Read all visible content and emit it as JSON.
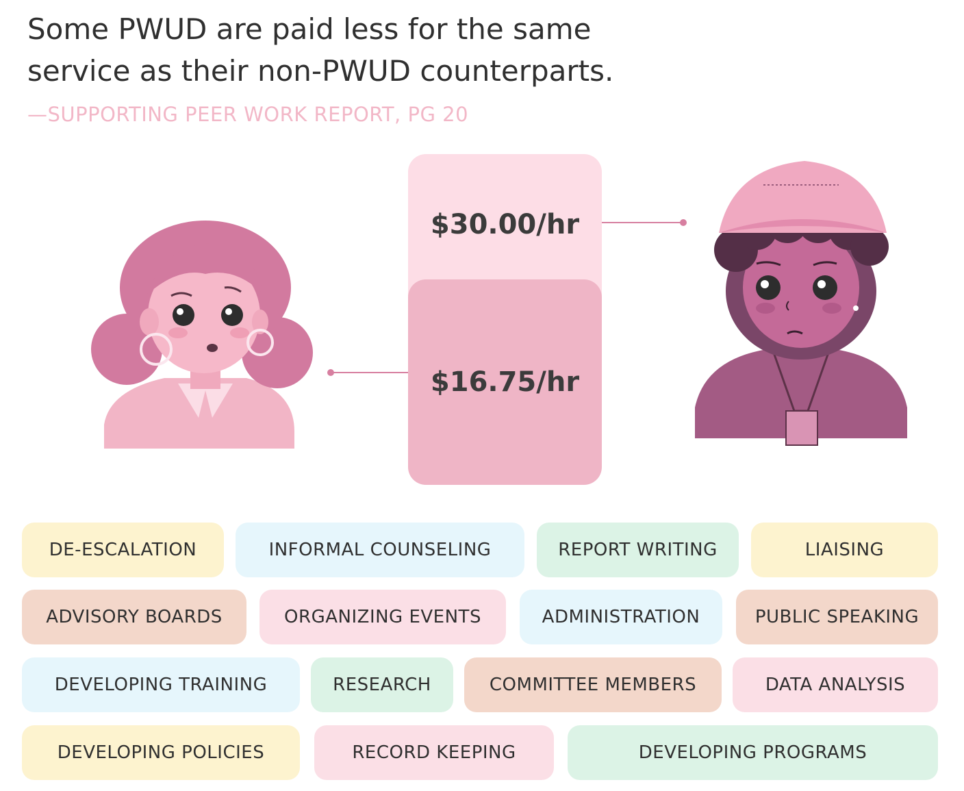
{
  "headline": "Some PWUD are paid less for the same service as their non-PWUD counterparts.",
  "source": "—SUPPORTING PEER WORK REPORT, PG 20",
  "wages": {
    "non_pwud": "$30.00/hr",
    "pwud": "$16.75/hr"
  },
  "chart_data": {
    "type": "bar",
    "categories": [
      "non-PWUD",
      "PWUD"
    ],
    "values": [
      30.0,
      16.75
    ]
  },
  "colors": {
    "yellow": "#fdf3cf",
    "blue": "#e6f6fc",
    "green": "#dcf3e6",
    "peach": "#f3d7ca",
    "pink": "#fbdfe6",
    "bar_high": "#fddde6",
    "bar_low": "#efb5c6",
    "connector": "#d77fa0"
  },
  "skills": [
    {
      "label": "DE-ESCALATION",
      "color": "yellow"
    },
    {
      "label": "INFORMAL COUNSELING",
      "color": "blue"
    },
    {
      "label": "REPORT WRITING",
      "color": "green"
    },
    {
      "label": "LIAISING",
      "color": "yellow"
    },
    {
      "label": "ADVISORY BOARDS",
      "color": "peach"
    },
    {
      "label": "ORGANIZING EVENTS",
      "color": "pink"
    },
    {
      "label": "ADMINISTRATION",
      "color": "blue"
    },
    {
      "label": "PUBLIC SPEAKING",
      "color": "peach"
    },
    {
      "label": "DEVELOPING TRAINING",
      "color": "blue"
    },
    {
      "label": "RESEARCH",
      "color": "green"
    },
    {
      "label": "COMMITTEE MEMBERS",
      "color": "peach"
    },
    {
      "label": "DATA ANALYSIS",
      "color": "pink"
    },
    {
      "label": "DEVELOPING POLICIES",
      "color": "yellow"
    },
    {
      "label": "RECORD KEEPING",
      "color": "pink"
    },
    {
      "label": "DEVELOPING PROGRAMS",
      "color": "green"
    }
  ]
}
